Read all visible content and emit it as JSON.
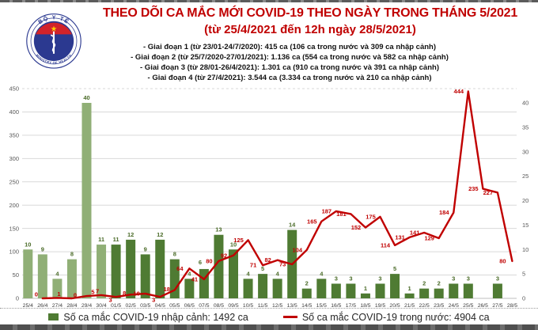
{
  "page": {
    "title_line1": "THEO DÕI CA MẮC MỚI COVID-19 THEO NGÀY TRONG THÁNG 5/2021",
    "title_line2": "(từ 25/4/2021 đến 12h ngày 28/5/2021)"
  },
  "header": {
    "bullets": [
      "- Giai đoạn 1 (từ 23/01-24/7/2020): 415 ca (106 ca trong nước và 309 ca nhập cảnh)",
      "- Giai đoạn 2 (từ 25/7/2020-27/01/2021): 1.136 ca (554 ca trong nước và 582 ca nhập cảnh)",
      "- Giai đoạn 3 (từ 28/01-26/4/2021): 1.301 ca (910 ca trong nước và 391 ca nhập cảnh)",
      "- Giai đoạn 4 (từ 27/4/2021): 3.544 ca (3.334 ca trong nước và 210 ca nhập cảnh)"
    ]
  },
  "logo": {
    "top_text": "BỘ Y TẾ",
    "bottom_text": "MINISTRY OF HEALTH"
  },
  "legend": {
    "imported_label": "Số ca mắc COVID-19 nhập cảnh: 1492 ca",
    "domestic_label": "Số ca mắc COVID-19 trong nước: 4904 ca"
  },
  "chart_data": {
    "type": "combo",
    "categories": [
      "25/4",
      "26/4",
      "27/4",
      "28/4",
      "29/4",
      "30/4",
      "01/5",
      "02/5",
      "03/5",
      "04/5",
      "05/5",
      "06/5",
      "07/5",
      "08/5",
      "09/5",
      "10/5",
      "11/5",
      "12/5",
      "13/5",
      "14/5",
      "15/5",
      "16/5",
      "17/5",
      "18/5",
      "19/5",
      "20/5",
      "21/5",
      "22/5",
      "23/5",
      "24/5",
      "25/5",
      "26/5",
      "27/5",
      "28/5"
    ],
    "series": [
      {
        "name": "Số ca mắc COVID-19 nhập cảnh",
        "chart": "bar",
        "axis": "right",
        "values": [
          10,
          9,
          4,
          8,
          40,
          11,
          11,
          12,
          9,
          12,
          8,
          4,
          6,
          13,
          10,
          4,
          5,
          4,
          14,
          2,
          4,
          3,
          3,
          1,
          3,
          5,
          1,
          2,
          2,
          3,
          3,
          0,
          3,
          0
        ]
      },
      {
        "name": "Số ca mắc COVID-19 trong nước",
        "chart": "line",
        "axis": "left",
        "values": [
          null,
          0,
          1,
          0,
          5,
          7,
          3,
          8,
          10,
          3,
          18,
          64,
          41,
          80,
          92,
          125,
          71,
          82,
          73,
          104,
          165,
          187,
          181,
          152,
          175,
          114,
          131,
          141,
          129,
          184,
          444,
          235,
          227,
          80
        ]
      }
    ],
    "left_axis": {
      "min": 0,
      "max": 450,
      "step": 50
    },
    "right_axis": {
      "min": 0,
      "max": 40,
      "step": 5
    },
    "grid": true,
    "legend_position": "bottom",
    "colors": {
      "bar_april": "#90af76",
      "bar_may": "#4f7b33",
      "bar_label": "#4a6b28",
      "line": "#c00000",
      "grid": "#d9d9d9",
      "axis_text": "#595959",
      "x_text": "#3d3d3d"
    },
    "april_bar_count": 6,
    "line_label_offsets": {
      "1": [
        -8,
        -5
      ],
      "2": [
        2,
        -5
      ],
      "3": [
        4,
        -4
      ],
      "4": [
        8,
        -5
      ],
      "5": [
        -5,
        -5
      ],
      "6": [
        -7,
        4
      ],
      "7": [
        -8,
        -2
      ],
      "8": [
        -11,
        0
      ],
      "9": [
        -8,
        4
      ],
      "10": [
        -10,
        -1
      ]
    },
    "bar_label_offsets": {
      "12": [
        -5,
        -2
      ]
    }
  }
}
